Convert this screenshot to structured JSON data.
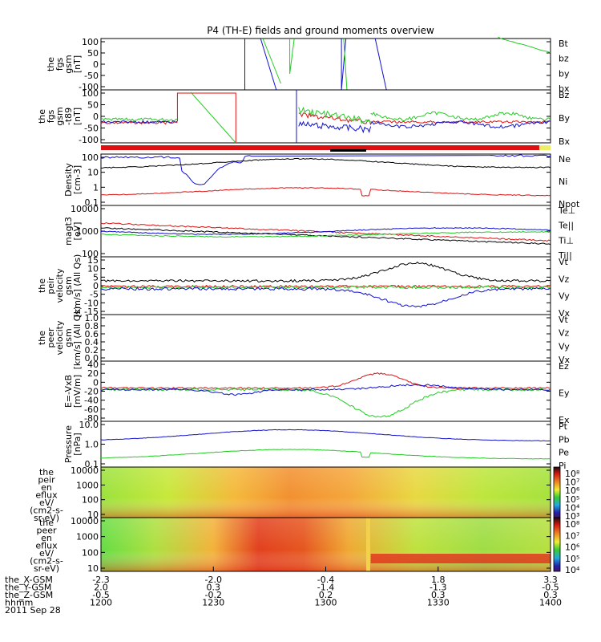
{
  "title": "P4 (TH-E) fields and ground moments overview",
  "colors": {
    "black": "#000000",
    "red": "#dd1111",
    "green": "#22cc22",
    "blue": "#1111cc",
    "yellow": "#eeee66"
  },
  "chart_data": {
    "type": "line",
    "panels": [
      {
        "id": "fgs",
        "ylabel": [
          "the",
          "fgs",
          "gsm",
          "[nT]"
        ],
        "yticks": [
          "100",
          "50",
          "0",
          "-50",
          "-100"
        ],
        "legend": [
          {
            "label": "Bt",
            "color": "#000000"
          },
          {
            "label": "bz",
            "color": "#dd1111"
          },
          {
            "label": "by",
            "color": "#22cc22"
          },
          {
            "label": "bx",
            "color": "#1111cc"
          }
        ]
      },
      {
        "id": "fgs_t89",
        "ylabel": [
          "the",
          "fgs",
          "gsm",
          "-t89",
          "[nT]"
        ],
        "yticks": [
          "100",
          "50",
          "0",
          "-50",
          "-100"
        ],
        "legend": [
          {
            "label": "Bz",
            "color": "#dd1111"
          },
          {
            "label": "By",
            "color": "#22cc22"
          },
          {
            "label": "Bx",
            "color": "#1111cc"
          }
        ]
      },
      {
        "id": "density",
        "ylabel": [
          "Density",
          "[cm-3]"
        ],
        "yticks": [
          "100",
          "10",
          "1",
          "0.1"
        ],
        "legend": [
          {
            "label": "Ne",
            "color": "#dd1111"
          },
          {
            "label": "Ni",
            "color": "#000000"
          },
          {
            "label": "Npot",
            "color": "#1111cc"
          }
        ]
      },
      {
        "id": "temperature",
        "ylabel": [
          "magt3",
          "[eV]"
        ],
        "yticks": [
          "10000",
          "1000",
          "100"
        ],
        "legend": [
          {
            "label": "Te⊥",
            "color": "#dd1111"
          },
          {
            "label": "Te||",
            "color": "#000000"
          },
          {
            "label": "Ti⊥",
            "color": "#1111cc"
          },
          {
            "label": "Ti||",
            "color": "#22cc22"
          }
        ]
      },
      {
        "id": "peir_velocity",
        "ylabel": [
          "the",
          "peir",
          "velocity",
          "gsm",
          "[km/s] (All Qs)"
        ],
        "yticks": [
          "15",
          "10",
          "5",
          "0",
          "-5",
          "-10",
          "-15"
        ],
        "legend": [
          {
            "label": "Vt",
            "color": "#000000"
          },
          {
            "label": "Vz",
            "color": "#dd1111"
          },
          {
            "label": "Vy",
            "color": "#22cc22"
          },
          {
            "label": "Vx",
            "color": "#1111cc"
          }
        ]
      },
      {
        "id": "peer_velocity",
        "ylabel": [
          "the",
          "peer",
          "velocity",
          "gsm",
          "[km/s] (All Qs)"
        ],
        "yticks": [
          "1.0",
          "0.8",
          "0.6",
          "0.4",
          "0.2",
          "0.0"
        ],
        "legend": [
          {
            "label": "Vt",
            "color": "#000000"
          },
          {
            "label": "Vz",
            "color": "#dd1111"
          },
          {
            "label": "Vy",
            "color": "#22cc22"
          },
          {
            "label": "Vx",
            "color": "#1111cc"
          }
        ]
      },
      {
        "id": "efield",
        "ylabel": [
          "E=-VxB",
          "[mV/m]"
        ],
        "yticks": [
          "40",
          "20",
          "0",
          "-20",
          "-40",
          "-60",
          "-80"
        ],
        "legend": [
          {
            "label": "Ez",
            "color": "#dd1111"
          },
          {
            "label": "Ey",
            "color": "#22cc22"
          },
          {
            "label": "Ex",
            "color": "#1111cc"
          }
        ]
      },
      {
        "id": "pressure",
        "ylabel": [
          "Pressure",
          "[nPa]"
        ],
        "yticks": [
          "10.0",
          "1.0",
          "0.1"
        ],
        "legend": [
          {
            "label": "Pt",
            "color": "#000000"
          },
          {
            "label": "Pb",
            "color": "#dd1111"
          },
          {
            "label": "Pe",
            "color": "#22cc22"
          },
          {
            "label": "Pi",
            "color": "#1111cc"
          }
        ]
      },
      {
        "id": "peir_eflux",
        "ylabel": [
          "the",
          "peir",
          "en",
          "eflux",
          "eV/",
          "(cm2-s-",
          "sr-eV)"
        ],
        "yticks": [
          "10000",
          "1000",
          "100",
          "10"
        ],
        "colorbar": [
          "10⁸",
          "10⁷",
          "10⁶",
          "10⁵",
          "10⁴",
          "10³"
        ]
      },
      {
        "id": "peer_eflux",
        "ylabel": [
          "the",
          "peer",
          "en",
          "eflux",
          "eV/",
          "(cm2-s-",
          "sr-eV)"
        ],
        "yticks": [
          "10000",
          "1000",
          "100",
          "10"
        ],
        "colorbar": [
          "10⁸",
          "10⁷",
          "10⁶",
          "10⁵",
          "10⁴"
        ]
      }
    ],
    "x_axis": {
      "rows": [
        {
          "label": "the_X-GSM",
          "values": [
            "-2.3",
            "-2.0",
            "-0.4",
            "1.8",
            "3.3"
          ]
        },
        {
          "label": "the_Y-GSM",
          "values": [
            "2.0",
            "0.3",
            "-1.4",
            "-1.3",
            "-0.5"
          ]
        },
        {
          "label": "the_Z-GSM",
          "values": [
            "-0.5",
            "-0.2",
            "0.2",
            "0.3",
            "0.3"
          ]
        },
        {
          "label": "hhmm",
          "values": [
            "1200",
            "1230",
            "1300",
            "1330",
            "1400"
          ]
        }
      ],
      "date": "2011 Sep 28",
      "range": [
        "1200",
        "1400"
      ]
    }
  }
}
